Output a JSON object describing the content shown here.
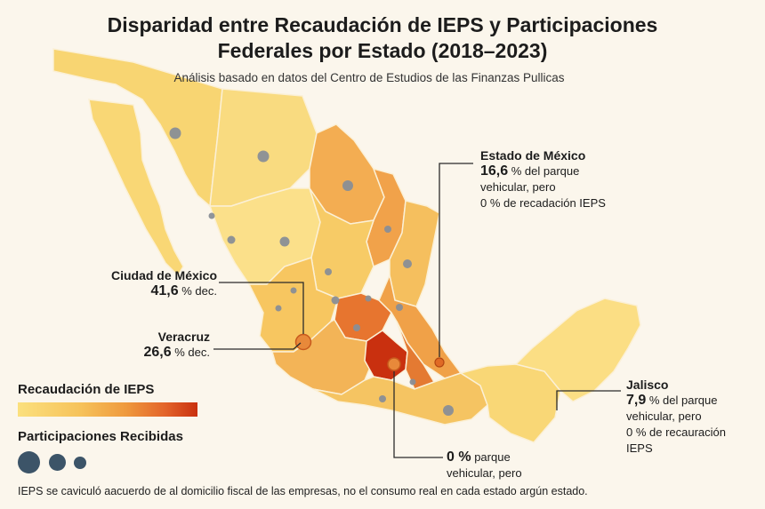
{
  "title": {
    "line1": "Disparidad entre Recaudación de IEPS y Participaciones",
    "line2": "Federales por Estado (2018–2023)"
  },
  "subtitle": "Análisis basado en datos del Centro de Estudios de las Finanzas Pullicas",
  "callouts": {
    "estado_mexico": {
      "name": "Estado de México",
      "value": "16,6",
      "line1_rest": "% del parque",
      "line2": "vehicular, pero",
      "line3": "0 % de recadación IEPS"
    },
    "cdmx": {
      "name": "Ciudad de México",
      "value": "41,6",
      "rest": "% dec."
    },
    "veracruz": {
      "name": "Veracruz",
      "value": "26,6",
      "rest": "% dec."
    },
    "jalisco": {
      "name": "Jalisco",
      "value": "7,9",
      "line1_rest": "% del parque",
      "line2": "vehicular, pero",
      "line3": "0 % de recauración",
      "line4": "IEPS"
    },
    "center": {
      "value": "0 %",
      "line1_rest": "parque",
      "line2": "vehicular, pero"
    }
  },
  "legend": {
    "ieps_title": "Recaudación de IEPS",
    "participaciones_title": "Participaciones Recibidas"
  },
  "footnote": "IEPS se caviculó aacuerdo de al domicilio fiscal de las empresas, no el consumo real en cada estado argún estado.",
  "colors": {
    "background": "#fbf6ec",
    "ieps_low": "#fbe07e",
    "ieps_mid": "#ef9a3e",
    "ieps_high": "#c9300f",
    "participaciones_dot": "#3c5468",
    "map_dot": "#8a8f96"
  }
}
